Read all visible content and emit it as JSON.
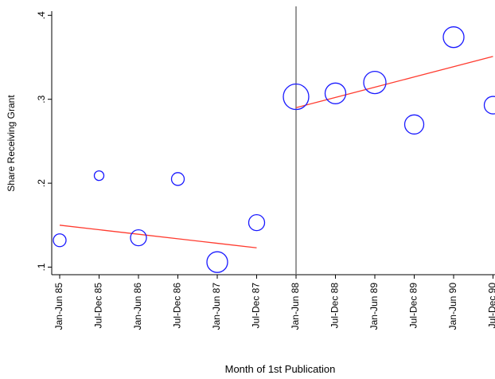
{
  "chart_data": {
    "type": "scatter",
    "y_label": "Share Receiving Grant",
    "x_label": "Month of 1st Publication",
    "categories": [
      "Jan-Jun 85",
      "Jul-Dec 85",
      "Jan-Jun 86",
      "Jul-Dec 86",
      "Jan-Jun 87",
      "Jul-Dec 87",
      "Jan-Jun 88",
      "Jul-Dec 88",
      "Jan-Jun 89",
      "Jul-Dec 89",
      "Jan-Jun 90",
      "Jul-Dec 90"
    ],
    "values": [
      0.132,
      0.209,
      0.135,
      0.205,
      0.106,
      0.153,
      0.303,
      0.307,
      0.32,
      0.27,
      0.374,
      0.293
    ],
    "sizes": [
      8,
      6,
      10,
      8,
      13,
      10,
      16,
      13,
      14,
      12,
      13,
      11
    ],
    "color": "#1a1aff",
    "fit_lines": [
      {
        "color": "#ff3b2f",
        "values": [
          0.15,
          0.1446,
          0.1392,
          0.1338,
          0.1284,
          0.123,
          null,
          null,
          null,
          null,
          null,
          null
        ]
      },
      {
        "color": "#ff3b2f",
        "values": [
          null,
          null,
          null,
          null,
          null,
          null,
          0.29,
          0.3022,
          0.3144,
          0.3266,
          0.3388,
          0.351
        ]
      }
    ],
    "cutoff_index": 6,
    "cutoff_color": "#777777",
    "ylim": [
      0.091,
      0.405
    ],
    "yticks": [
      {
        "value": 0.1,
        "label": ".1"
      },
      {
        "value": 0.2,
        "label": ".2"
      },
      {
        "value": 0.3,
        "label": ".3"
      },
      {
        "value": 0.4,
        "label": ".4"
      }
    ]
  }
}
